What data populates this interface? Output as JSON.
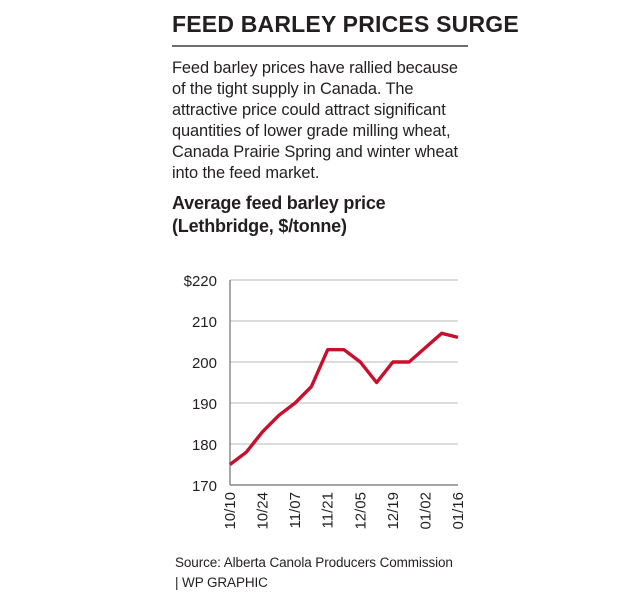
{
  "header": {
    "title": "FEED BARLEY PRICES SURGE",
    "description": "Feed barley prices have rallied because of the tight supply in Canada. The attractive price could attract significant quantities of lower grade milling wheat, Canada Prairie Spring and winter wheat into the feed market."
  },
  "chart_data": {
    "type": "line",
    "title": "Average feed barley price (Lethbridge, $/tonne)",
    "title_lines": [
      "Average feed barley price",
      "(Lethbridge, $/tonne)"
    ],
    "x_tick_labels": [
      "10/10",
      "10/24",
      "11/07",
      "11/21",
      "12/05",
      "12/19",
      "01/02",
      "01/16"
    ],
    "y_tick_labels": [
      "$220",
      "210",
      "200",
      "190",
      "180",
      "170"
    ],
    "ylim": [
      170,
      220
    ],
    "grid": true,
    "series": [
      {
        "values": [
          175,
          178,
          183,
          187,
          190,
          194,
          203,
          203,
          200,
          195,
          200,
          200,
          203.5,
          207,
          206
        ]
      }
    ],
    "line_color": "#c8102e"
  },
  "footer": {
    "source": "Source: Alberta Canola Producers Commission",
    "credit": "| WP GRAPHIC"
  }
}
